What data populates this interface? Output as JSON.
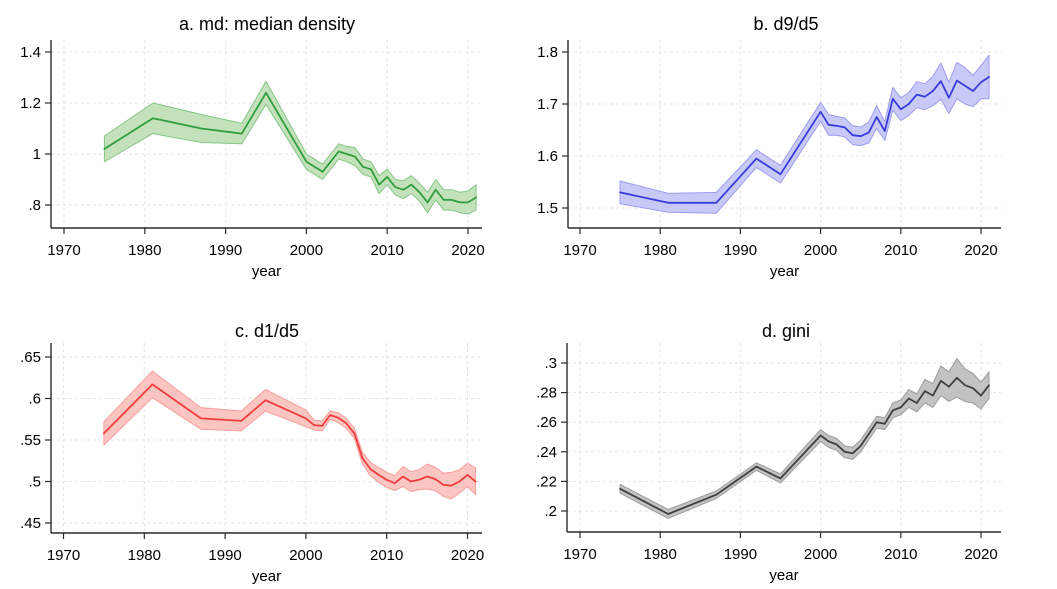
{
  "figure": {
    "background": "#ffffff",
    "x_axis_label": "year",
    "x_tick_labels": [
      "1970",
      "1980",
      "1990",
      "2000",
      "2010",
      "2020"
    ],
    "x_ticks": [
      1970,
      1980,
      1990,
      2000,
      2010,
      2020
    ]
  },
  "colors": {
    "axis": "#2a2a2a",
    "grid": "#e3e3e3",
    "text": "#000000",
    "background": "#ffffff",
    "panel_a_line": "#2f9e3c",
    "panel_a_band": "#c3e1bb",
    "panel_a_band_edge": "#86c687",
    "panel_b_line": "#3b3bdc",
    "panel_b_band": "#c9c9f7",
    "panel_b_band_edge": "#9c9cf0",
    "panel_c_line": "#f23d3d",
    "panel_c_band": "#fbc5c2",
    "panel_c_band_edge": "#f79e9b",
    "panel_d_line": "#3f3f3f",
    "panel_d_band": "#c2c2c2",
    "panel_d_band_edge": "#9b9b9b"
  },
  "chart_data": [
    {
      "type": "line",
      "panel": "a",
      "title": "a. md: median density",
      "xlabel": "year",
      "ylabel": "",
      "grid": true,
      "legend": "none",
      "x_ticks": [
        1970,
        1980,
        1990,
        2000,
        2010,
        2020
      ],
      "x_tick_labels": [
        "1970",
        "1980",
        "1990",
        "2000",
        "2010",
        "2020"
      ],
      "y_ticks": [
        0.8,
        1.0,
        1.2,
        1.4
      ],
      "y_tick_labels": [
        ".8",
        "1",
        "1.2",
        "1.4"
      ],
      "xlim": [
        1968.4,
        2021.8
      ],
      "ylim": [
        0.71,
        1.45
      ],
      "x": [
        1975,
        1981,
        1987,
        1992,
        1995,
        2000,
        2001,
        2002,
        2003,
        2004,
        2005,
        2006,
        2007,
        2008,
        2009,
        2010,
        2011,
        2012,
        2013,
        2014,
        2015,
        2016,
        2017,
        2018,
        2019,
        2020,
        2021
      ],
      "series": [
        {
          "name": "md",
          "values": [
            1.02,
            1.14,
            1.1,
            1.08,
            1.24,
            0.97,
            0.95,
            0.93,
            0.97,
            1.01,
            1.0,
            0.99,
            0.95,
            0.94,
            0.88,
            0.91,
            0.87,
            0.86,
            0.88,
            0.85,
            0.81,
            0.86,
            0.82,
            0.82,
            0.81,
            0.81,
            0.83
          ],
          "ci_low": [
            0.97,
            1.08,
            1.045,
            1.04,
            1.195,
            0.94,
            0.92,
            0.9,
            0.94,
            0.98,
            0.97,
            0.955,
            0.92,
            0.91,
            0.845,
            0.88,
            0.84,
            0.825,
            0.845,
            0.815,
            0.77,
            0.82,
            0.78,
            0.78,
            0.77,
            0.765,
            0.78
          ],
          "ci_high": [
            1.07,
            1.2,
            1.155,
            1.12,
            1.285,
            1.0,
            0.98,
            0.96,
            1.0,
            1.04,
            1.03,
            1.025,
            0.98,
            0.97,
            0.915,
            0.94,
            0.9,
            0.895,
            0.915,
            0.885,
            0.85,
            0.9,
            0.86,
            0.86,
            0.85,
            0.855,
            0.88
          ]
        }
      ],
      "line_color": "#2f9e3c",
      "band_fill": "#c3e1bb",
      "band_edge": "#86c687"
    },
    {
      "type": "line",
      "panel": "b",
      "title": "b. d9/d5",
      "xlabel": "year",
      "ylabel": "",
      "grid": true,
      "legend": "none",
      "x_ticks": [
        1970,
        1980,
        1990,
        2000,
        2010,
        2020
      ],
      "x_tick_labels": [
        "1970",
        "1980",
        "1990",
        "2000",
        "2010",
        "2020"
      ],
      "y_ticks": [
        1.5,
        1.6,
        1.7,
        1.8
      ],
      "y_tick_labels": [
        "1.5",
        "1.6",
        "1.7",
        "1.8"
      ],
      "xlim": [
        1968.5,
        2021.8
      ],
      "ylim": [
        1.46,
        1.82
      ],
      "x": [
        1975,
        1981,
        1987,
        1992,
        1995,
        2000,
        2001,
        2002,
        2003,
        2004,
        2005,
        2006,
        2007,
        2008,
        2009,
        2010,
        2011,
        2012,
        2013,
        2014,
        2015,
        2016,
        2017,
        2018,
        2019,
        2020,
        2021
      ],
      "series": [
        {
          "name": "d9/d5",
          "values": [
            1.53,
            1.51,
            1.51,
            1.595,
            1.565,
            1.685,
            1.66,
            1.658,
            1.655,
            1.64,
            1.638,
            1.645,
            1.675,
            1.648,
            1.71,
            1.69,
            1.7,
            1.718,
            1.714,
            1.725,
            1.744,
            1.712,
            1.745,
            1.735,
            1.725,
            1.742,
            1.752
          ],
          "ci_low": [
            1.508,
            1.492,
            1.49,
            1.578,
            1.548,
            1.667,
            1.64,
            1.64,
            1.637,
            1.622,
            1.62,
            1.625,
            1.653,
            1.63,
            1.688,
            1.668,
            1.678,
            1.693,
            1.689,
            1.697,
            1.709,
            1.682,
            1.71,
            1.7,
            1.695,
            1.71,
            1.71
          ],
          "ci_high": [
            1.552,
            1.528,
            1.53,
            1.612,
            1.582,
            1.703,
            1.68,
            1.676,
            1.673,
            1.658,
            1.656,
            1.665,
            1.697,
            1.666,
            1.732,
            1.712,
            1.722,
            1.743,
            1.739,
            1.753,
            1.779,
            1.742,
            1.78,
            1.77,
            1.755,
            1.774,
            1.794
          ]
        }
      ],
      "line_color": "#3b3bdc",
      "band_fill": "#c9c9f7",
      "band_edge": "#9c9cf0"
    },
    {
      "type": "line",
      "panel": "c",
      "title": "c. d1/d5",
      "xlabel": "year",
      "ylabel": "",
      "grid": true,
      "legend": "none",
      "x_ticks": [
        1970,
        1980,
        1990,
        2000,
        2010,
        2020
      ],
      "x_tick_labels": [
        "1970",
        "1980",
        "1990",
        "2000",
        "2010",
        "2020"
      ],
      "y_ticks": [
        0.45,
        0.5,
        0.55,
        0.6,
        0.65
      ],
      "y_tick_labels": [
        ".45",
        ".5",
        ".55",
        ".6",
        ".65"
      ],
      "xlim": [
        1968.4,
        2021.8
      ],
      "ylim": [
        0.437,
        0.667
      ],
      "x": [
        1975,
        1981,
        1987,
        1992,
        1995,
        2000,
        2001,
        2002,
        2003,
        2004,
        2005,
        2006,
        2007,
        2008,
        2009,
        2010,
        2011,
        2012,
        2013,
        2014,
        2015,
        2016,
        2017,
        2018,
        2019,
        2020,
        2021
      ],
      "series": [
        {
          "name": "d1/d5",
          "values": [
            0.558,
            0.617,
            0.576,
            0.573,
            0.598,
            0.576,
            0.568,
            0.567,
            0.58,
            0.577,
            0.57,
            0.558,
            0.528,
            0.515,
            0.508,
            0.502,
            0.498,
            0.506,
            0.5,
            0.502,
            0.506,
            0.503,
            0.496,
            0.495,
            0.5,
            0.508,
            0.5
          ],
          "ci_low": [
            0.544,
            0.601,
            0.563,
            0.561,
            0.585,
            0.566,
            0.562,
            0.561,
            0.575,
            0.571,
            0.564,
            0.552,
            0.521,
            0.507,
            0.499,
            0.493,
            0.489,
            0.494,
            0.488,
            0.49,
            0.491,
            0.489,
            0.482,
            0.479,
            0.486,
            0.494,
            0.484
          ],
          "ci_high": [
            0.572,
            0.633,
            0.589,
            0.585,
            0.611,
            0.586,
            0.574,
            0.573,
            0.585,
            0.583,
            0.576,
            0.564,
            0.535,
            0.523,
            0.517,
            0.511,
            0.507,
            0.518,
            0.512,
            0.514,
            0.521,
            0.517,
            0.51,
            0.511,
            0.514,
            0.522,
            0.516
          ]
        }
      ],
      "line_color": "#f23d3d",
      "band_fill": "#fbc5c2",
      "band_edge": "#f79e9b"
    },
    {
      "type": "line",
      "panel": "d",
      "title": "d. gini",
      "xlabel": "year",
      "ylabel": "",
      "grid": true,
      "legend": "none",
      "x_ticks": [
        1970,
        1980,
        1990,
        2000,
        2010,
        2020
      ],
      "x_tick_labels": [
        "1970",
        "1980",
        "1990",
        "2000",
        "2010",
        "2020"
      ],
      "y_ticks": [
        0.2,
        0.22,
        0.24,
        0.26,
        0.28,
        0.3
      ],
      "y_tick_labels": [
        ".2",
        ".22",
        ".24",
        ".26",
        ".28",
        ".3"
      ],
      "xlim": [
        1968.5,
        2021.8
      ],
      "ylim": [
        0.186,
        0.314
      ],
      "x": [
        1975,
        1981,
        1987,
        1992,
        1995,
        2000,
        2001,
        2002,
        2003,
        2004,
        2005,
        2006,
        2007,
        2008,
        2009,
        2010,
        2011,
        2012,
        2013,
        2014,
        2015,
        2016,
        2017,
        2018,
        2019,
        2020,
        2021
      ],
      "series": [
        {
          "name": "gini",
          "values": [
            0.215,
            0.198,
            0.211,
            0.23,
            0.222,
            0.251,
            0.247,
            0.245,
            0.24,
            0.239,
            0.244,
            0.252,
            0.26,
            0.259,
            0.268,
            0.27,
            0.276,
            0.273,
            0.281,
            0.278,
            0.288,
            0.284,
            0.29,
            0.285,
            0.283,
            0.278,
            0.285
          ],
          "ci_low": [
            0.212,
            0.195,
            0.2085,
            0.2275,
            0.219,
            0.247,
            0.243,
            0.241,
            0.236,
            0.235,
            0.24,
            0.248,
            0.256,
            0.255,
            0.263,
            0.265,
            0.27,
            0.267,
            0.273,
            0.27,
            0.278,
            0.274,
            0.277,
            0.274,
            0.273,
            0.269,
            0.276
          ],
          "ci_high": [
            0.218,
            0.201,
            0.2135,
            0.2325,
            0.225,
            0.255,
            0.251,
            0.249,
            0.244,
            0.243,
            0.248,
            0.256,
            0.264,
            0.263,
            0.273,
            0.275,
            0.282,
            0.279,
            0.289,
            0.286,
            0.298,
            0.294,
            0.303,
            0.296,
            0.293,
            0.287,
            0.294
          ]
        }
      ],
      "line_color": "#3f3f3f",
      "band_fill": "#c2c2c2",
      "band_edge": "#9b9b9b"
    }
  ]
}
